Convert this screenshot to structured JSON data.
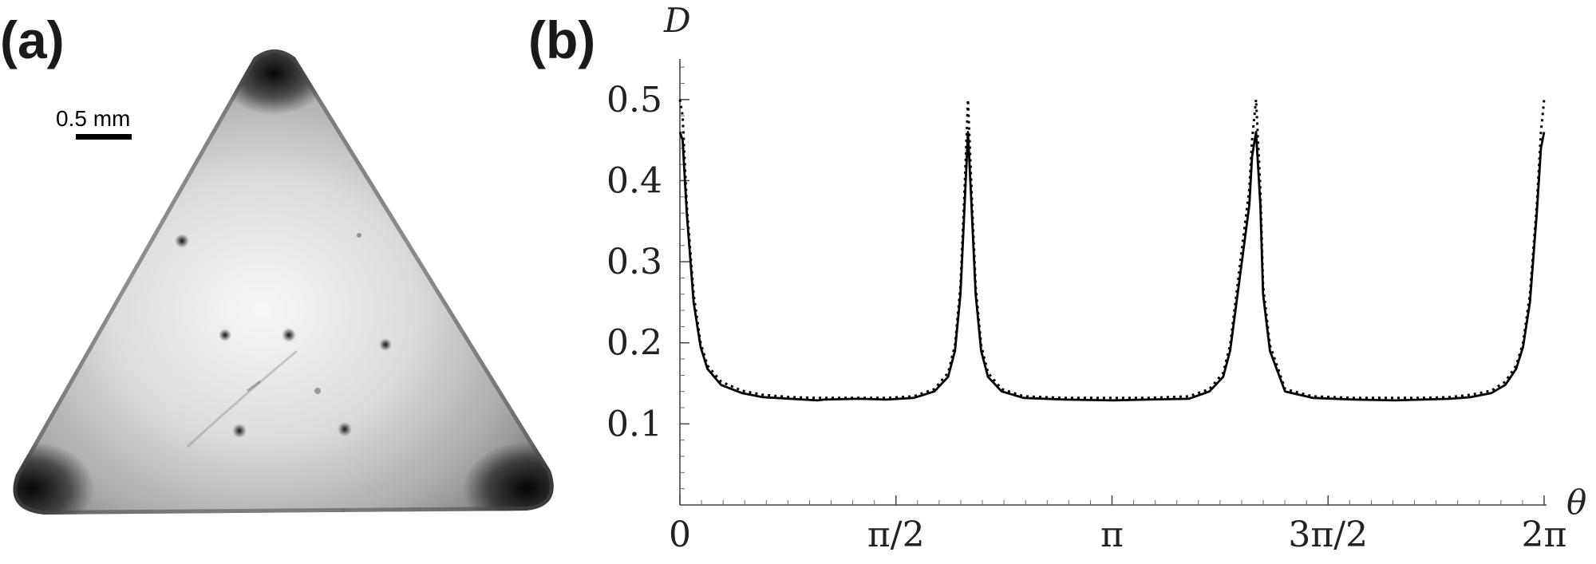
{
  "panels": {
    "a": {
      "label": "(a)",
      "scale_bar_text": "0.5 mm"
    },
    "b": {
      "label": "(b)"
    }
  },
  "chart_data": {
    "type": "line",
    "title": "",
    "xlabel": "θ",
    "ylabel": "D",
    "xlim": [
      0,
      6.2832
    ],
    "ylim": [
      0,
      0.55
    ],
    "x_ticks": [
      {
        "value": 0,
        "label": "0"
      },
      {
        "value": 1.5708,
        "label": "π/2"
      },
      {
        "value": 3.1416,
        "label": "π"
      },
      {
        "value": 4.7124,
        "label": "3π/2"
      },
      {
        "value": 6.2832,
        "label": "2π"
      }
    ],
    "y_ticks": [
      {
        "value": 0.1,
        "label": "0.1"
      },
      {
        "value": 0.2,
        "label": "0.2"
      },
      {
        "value": 0.3,
        "label": "0.3"
      },
      {
        "value": 0.4,
        "label": "0.4"
      },
      {
        "value": 0.5,
        "label": "0.5"
      }
    ],
    "grid": false,
    "legend": "none",
    "peaks_at": [
      0,
      2.0944,
      4.1888,
      6.2832
    ],
    "series": [
      {
        "style": "solid",
        "color": "#000000",
        "x": [
          0.0,
          0.02,
          0.05,
          0.1,
          0.15,
          0.2,
          0.3,
          0.45,
          0.6,
          0.8,
          1.0,
          1.047,
          1.3,
          1.5,
          1.7,
          1.85,
          1.95,
          2.0,
          2.04,
          2.07,
          2.0944,
          2.12,
          2.15,
          2.19,
          2.24,
          2.34,
          2.5,
          2.8,
          3.1416,
          3.4,
          3.7,
          3.85,
          3.95,
          4.0,
          4.14,
          4.16,
          4.1888,
          4.22,
          4.24,
          4.29,
          4.4,
          4.6,
          4.9,
          5.2,
          5.4,
          5.6,
          5.75,
          5.9,
          6.0,
          6.08,
          6.13,
          6.18,
          6.23,
          6.26,
          6.2832
        ],
        "y": [
          0.46,
          0.45,
          0.36,
          0.25,
          0.195,
          0.168,
          0.148,
          0.138,
          0.133,
          0.131,
          0.129,
          0.13,
          0.131,
          0.13,
          0.132,
          0.14,
          0.158,
          0.19,
          0.26,
          0.37,
          0.46,
          0.37,
          0.26,
          0.19,
          0.158,
          0.14,
          0.132,
          0.13,
          0.129,
          0.13,
          0.131,
          0.14,
          0.158,
          0.19,
          0.37,
          0.43,
          0.46,
          0.37,
          0.26,
          0.19,
          0.14,
          0.132,
          0.13,
          0.129,
          0.13,
          0.131,
          0.133,
          0.138,
          0.148,
          0.168,
          0.195,
          0.25,
          0.36,
          0.44,
          0.46
        ]
      },
      {
        "style": "dotted",
        "color": "#000000",
        "x": [
          0.0,
          0.02,
          0.05,
          0.1,
          0.15,
          0.2,
          0.3,
          0.45,
          0.6,
          0.8,
          1.0,
          1.3,
          1.5,
          1.7,
          1.85,
          1.95,
          2.0,
          2.04,
          2.07,
          2.0944,
          2.12,
          2.15,
          2.19,
          2.24,
          2.34,
          2.5,
          2.8,
          3.1416,
          3.4,
          3.7,
          3.85,
          3.95,
          4.0,
          4.14,
          4.16,
          4.1888,
          4.22,
          4.24,
          4.29,
          4.4,
          4.6,
          4.9,
          5.2,
          5.4,
          5.6,
          5.75,
          5.9,
          6.0,
          6.08,
          6.13,
          6.18,
          6.23,
          6.26,
          6.2832
        ],
        "y": [
          0.5,
          0.48,
          0.37,
          0.26,
          0.2,
          0.172,
          0.152,
          0.141,
          0.136,
          0.133,
          0.132,
          0.132,
          0.132,
          0.134,
          0.143,
          0.163,
          0.197,
          0.27,
          0.39,
          0.5,
          0.39,
          0.27,
          0.197,
          0.163,
          0.143,
          0.134,
          0.132,
          0.132,
          0.132,
          0.134,
          0.143,
          0.163,
          0.197,
          0.39,
          0.45,
          0.5,
          0.39,
          0.27,
          0.197,
          0.143,
          0.134,
          0.132,
          0.132,
          0.132,
          0.133,
          0.136,
          0.141,
          0.152,
          0.172,
          0.2,
          0.26,
          0.37,
          0.46,
          0.5
        ]
      }
    ]
  }
}
